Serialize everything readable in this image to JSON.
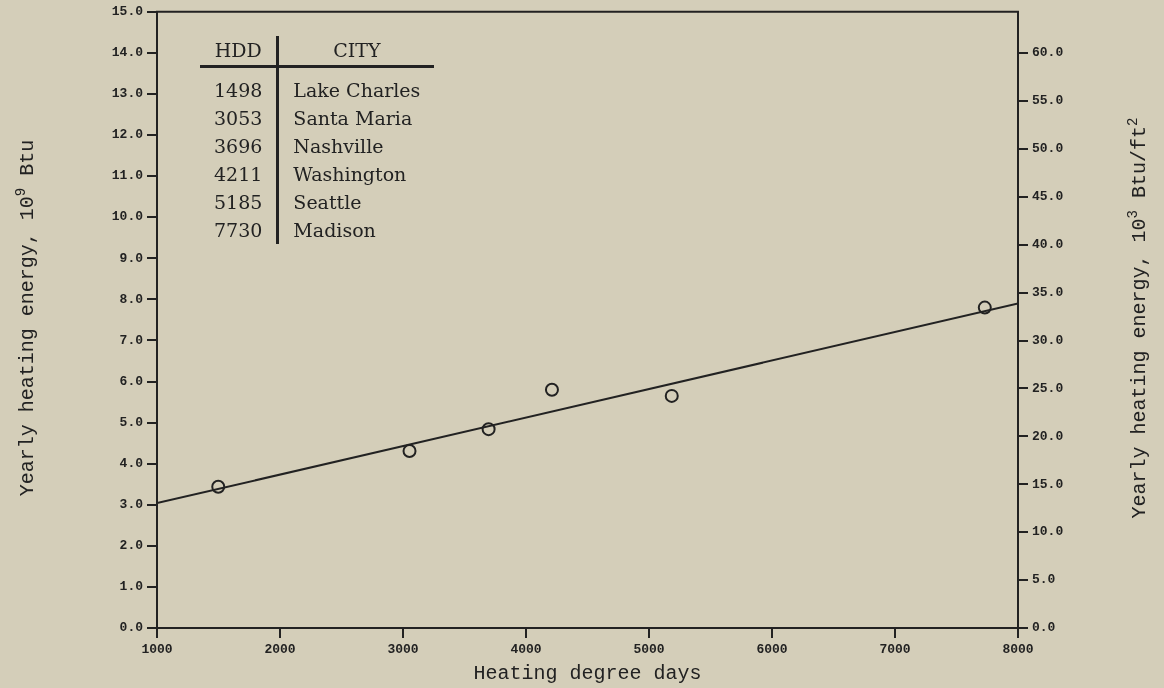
{
  "chart_data": {
    "type": "scatter",
    "xlabel": "Heating degree days",
    "ylabel": "Yearly heating energy, 10$^{9}$ Btu",
    "y2label": "Yearly heating energy, 10$^{3}$ Btu/ft$^{2}$",
    "annotations": [
      "HDD",
      "CITY",
      "1498",
      "Lake Charles",
      "3053",
      "Santa Maria",
      "3696",
      "Nashville",
      "4211",
      "Washington",
      "5185",
      "Seattle",
      "7730",
      "Madison"
    ],
    "xlim": [
      1000,
      8000
    ],
    "xticks": [
      1000,
      2000,
      3000,
      4000,
      5000,
      6000,
      7000,
      8000
    ],
    "ylim": [
      0,
      15
    ],
    "yticks": [
      {
        "value": 0,
        "label": "0.0"
      },
      {
        "value": 1,
        "label": "1.0"
      },
      {
        "value": 2,
        "label": "2.0"
      },
      {
        "value": 3,
        "label": "3.0"
      },
      {
        "value": 4,
        "label": "4.0"
      },
      {
        "value": 5,
        "label": "5.0"
      },
      {
        "value": 6,
        "label": "6.0"
      },
      {
        "value": 7,
        "label": "7.0"
      },
      {
        "value": 8,
        "label": "8.0"
      },
      {
        "value": 9,
        "label": "9.0"
      },
      {
        "value": 10,
        "label": "10.0"
      },
      {
        "value": 11,
        "label": "11.0"
      },
      {
        "value": 12,
        "label": "12.0"
      },
      {
        "value": 13,
        "label": "13.0"
      },
      {
        "value": 14,
        "label": "14.0"
      },
      {
        "value": 15,
        "label": "15.0"
      }
    ],
    "y2lim": [
      0,
      64.3
    ],
    "y2ticks": [
      {
        "value": 0,
        "label": "0.0"
      },
      {
        "value": 5,
        "label": "5.0"
      },
      {
        "value": 10,
        "label": "10.0"
      },
      {
        "value": 15,
        "label": "15.0"
      },
      {
        "value": 20,
        "label": "20.0"
      },
      {
        "value": 25,
        "label": "25.0"
      },
      {
        "value": 30,
        "label": "30.0"
      },
      {
        "value": 35,
        "label": "35.0"
      },
      {
        "value": 40,
        "label": "40.0"
      },
      {
        "value": 45,
        "label": "45.0"
      },
      {
        "value": 50,
        "label": "50.0"
      },
      {
        "value": 55,
        "label": "55.0"
      },
      {
        "value": 60,
        "label": "60.0"
      }
    ],
    "marker": "circle",
    "grid": false,
    "legend": false,
    "series": [
      {
        "type": "scatter",
        "color": "#222222",
        "x": [
          1498,
          3053,
          3696,
          4211,
          5185,
          7730
        ],
        "values": [
          3.44,
          4.31,
          4.84,
          5.8,
          5.65,
          7.8
        ]
      },
      {
        "type": "line",
        "color": "#222222",
        "x": [
          1000,
          8000
        ],
        "values": [
          3.04,
          7.9
        ],
        "marker": "none"
      }
    ]
  }
}
